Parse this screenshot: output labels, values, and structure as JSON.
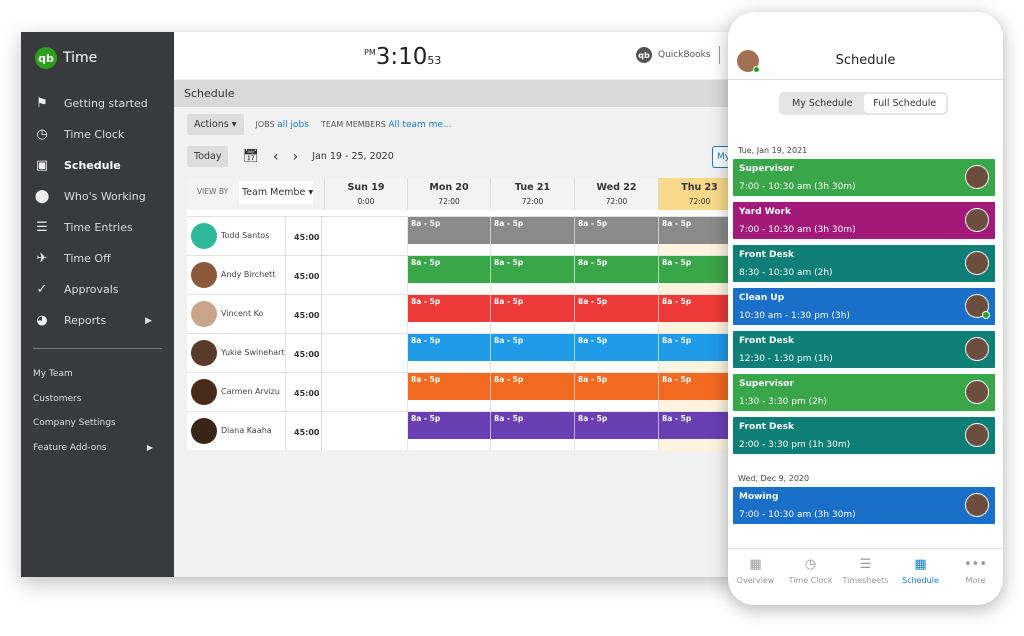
{
  "sidebar": {
    "brand": "Time",
    "logo": "qb",
    "items": [
      {
        "label": "Getting started",
        "icon": "flag-icon",
        "glyph": "⚑"
      },
      {
        "label": "Time Clock",
        "icon": "clock-icon",
        "glyph": "◷"
      },
      {
        "label": "Schedule",
        "icon": "calendar-icon",
        "glyph": "▣",
        "active": true
      },
      {
        "label": "Who's Working",
        "icon": "location-pin-icon",
        "glyph": "⬤"
      },
      {
        "label": "Time Entries",
        "icon": "time-entries-icon",
        "glyph": "☰"
      },
      {
        "label": "Time Off",
        "icon": "airplane-icon",
        "glyph": "✈"
      },
      {
        "label": "Approvals",
        "icon": "checkmarks-icon",
        "glyph": "✓"
      },
      {
        "label": "Reports",
        "icon": "pie-chart-icon",
        "glyph": "◕",
        "arrow": "▶"
      }
    ],
    "sub_items": [
      {
        "label": "My Team"
      },
      {
        "label": "Customers"
      },
      {
        "label": "Company Settings"
      },
      {
        "label": "Feature Add-ons",
        "arrow": "▶"
      }
    ]
  },
  "header": {
    "ampm": "PM",
    "time": "3:10",
    "seconds": "53",
    "quickbooks": "QuickBooks"
  },
  "schedule": {
    "title": "Schedule",
    "actions": "Actions ▾",
    "jobs_label": "JOBS",
    "jobs_value": "all jobs",
    "team_label": "TEAM MEMBERS",
    "team_value": "All team me...",
    "today": "Today",
    "prev": "‹",
    "next": "›",
    "range": "Jan 19 - 25, 2020",
    "my_button": "My",
    "view_by_label": "VIEW BY",
    "view_by_value": "Team Membe ▾",
    "days": [
      {
        "name": "Sun 19",
        "hours": "0:00"
      },
      {
        "name": "Mon 20",
        "hours": "72:00"
      },
      {
        "name": "Tue 21",
        "hours": "72:00"
      },
      {
        "name": "Wed 22",
        "hours": "72:00"
      },
      {
        "name": "Thu 23",
        "hours": "72:00",
        "highlight": true
      }
    ],
    "members": [
      {
        "name": "Todd Santos",
        "hours": "45:00",
        "color": "#8a8a8a",
        "shift": "8a - 5p"
      },
      {
        "name": "Andy Birchett",
        "hours": "45:00",
        "color": "#3aa64a",
        "shift": "8a - 5p"
      },
      {
        "name": "Vincent Ko",
        "hours": "45:00",
        "color": "#ef3a3a",
        "shift": "8a - 5p"
      },
      {
        "name": "Yukie Swinehart",
        "hours": "45:00",
        "color": "#1f9be8",
        "shift": "8a - 5p"
      },
      {
        "name": "Carmen Arvizu",
        "hours": "45:00",
        "color": "#f26a1f",
        "shift": "8a - 5p"
      },
      {
        "name": "Diana Kaaha",
        "hours": "45:00",
        "color": "#6a3fb4",
        "shift": "8a - 5p"
      }
    ]
  },
  "phone": {
    "title": "Schedule",
    "seg": [
      "My Schedule",
      "Full Schedule"
    ],
    "groups": [
      {
        "date": "Tue, Jan 19, 2021",
        "cards": [
          {
            "title": "Supervisor",
            "time": "7:00 - 10:30 am (3h 30m)",
            "color": "#3aa64a"
          },
          {
            "title": "Yard Work",
            "time": "7:00 - 10:30 am (3h 30m)",
            "color": "#a3197a"
          },
          {
            "title": "Front Desk",
            "time": "8:30 - 10:30 am (2h)",
            "color": "#0e7f77"
          },
          {
            "title": "Clean Up",
            "time": "10:30 am - 1:30 pm (3h)",
            "color": "#1a6fc9",
            "online": true
          },
          {
            "title": "Front Desk",
            "time": "12:30 - 1:30 pm (1h)",
            "color": "#0e7f77"
          },
          {
            "title": "Supervisor",
            "time": "1:30 - 3:30 pm (2h)",
            "color": "#3aa64a"
          },
          {
            "title": "Front Desk",
            "time": "2:00 - 3:30 pm (1h 30m)",
            "color": "#0e7f77"
          }
        ]
      },
      {
        "date": "Wed, Dec 9, 2020",
        "cards": [
          {
            "title": "Mowing",
            "time": "7:00 - 10:30 am (3h 30m)",
            "color": "#1a6fc9"
          }
        ]
      }
    ],
    "tabs": [
      {
        "label": "Overview",
        "icon": "grid-icon",
        "glyph": "▦"
      },
      {
        "label": "Time Clock",
        "icon": "clock-icon",
        "glyph": "◷"
      },
      {
        "label": "Timesheets",
        "icon": "timesheets-icon",
        "glyph": "☰"
      },
      {
        "label": "Schedule",
        "icon": "calendar-icon",
        "glyph": "▦",
        "active": true
      },
      {
        "label": "More",
        "icon": "more-icon",
        "glyph": "•••"
      }
    ]
  }
}
